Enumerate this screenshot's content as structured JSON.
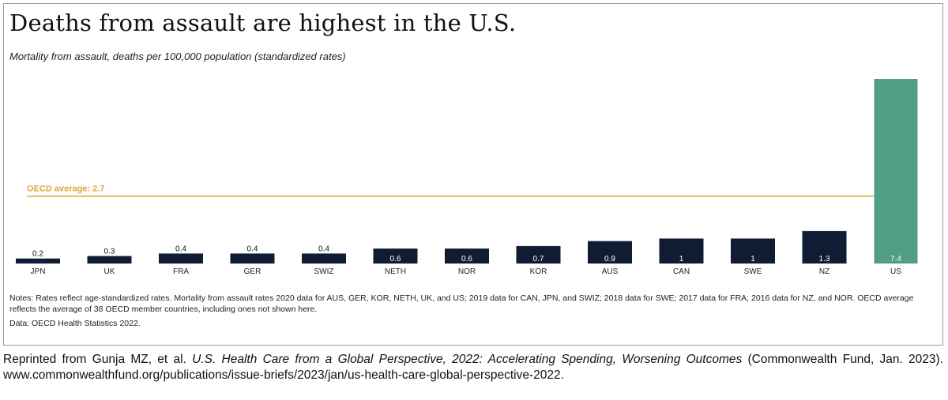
{
  "chart_data": {
    "type": "bar",
    "title": "Deaths from assault are highest in the U.S.",
    "subtitle": "Mortality from assault, deaths per 100,000 population (standardized rates)",
    "categories": [
      "JPN",
      "UK",
      "FRA",
      "GER",
      "SWIZ",
      "NETH",
      "NOR",
      "KOR",
      "AUS",
      "CAN",
      "SWE",
      "NZ",
      "US"
    ],
    "values": [
      0.2,
      0.3,
      0.4,
      0.4,
      0.4,
      0.6,
      0.6,
      0.7,
      0.9,
      1,
      1,
      1.3,
      7.4
    ],
    "value_labels": [
      "0.2",
      "0.3",
      "0.4",
      "0.4",
      "0.4",
      "0.6",
      "0.6",
      "0.7",
      "0.9",
      "1",
      "1",
      "1.3",
      "7.4"
    ],
    "highlight_category": "US",
    "reference_line": {
      "label": "OECD average: 2.7",
      "value": 2.7
    },
    "ylim": [
      0,
      7.4
    ],
    "xlabel": "",
    "ylabel": "",
    "grid": false,
    "colors": {
      "bar": "#0f1c33",
      "highlight": "#4f9e85",
      "reference": "#d9a93a",
      "label_on_bar": "#ffffff",
      "label_above": "#111111"
    }
  },
  "notes": "Notes: Rates reflect age-standardized rates. Mortality from assault rates 2020 data for AUS, GER, KOR, NETH, UK, and US; 2019 data for CAN, JPN, and SWIZ; 2018 data for SWE; 2017 data for FRA; 2016 data for NZ, and NOR. OECD average reflects the average of 38 OECD member countries, including ones not shown here.",
  "source": "Data: OECD Health Statistics 2022.",
  "credit": {
    "prefix": "Reprinted from Gunja MZ, et al. ",
    "italic_title": "U.S. Health Care from a Global Perspective, 2022: Accelerating Spending, Worsening Outcomes",
    "suffix": " (Commonwealth Fund, Jan. 2023). www.commonwealthfund.org/publications/issue-briefs/2023/jan/us-health-care-global-perspective-2022."
  }
}
